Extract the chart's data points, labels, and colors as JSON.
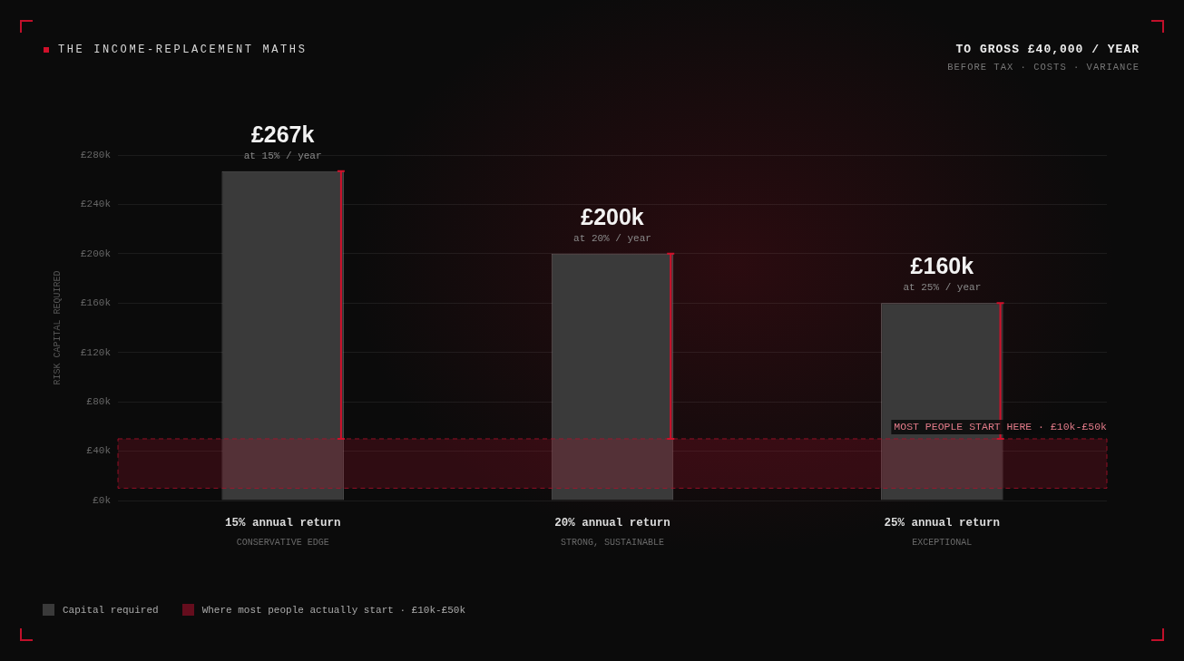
{
  "chart_data": {
    "type": "bar",
    "title": "THE INCOME-REPLACEMENT MATHS",
    "subtitle": "TO GROSS £40,000 / YEAR",
    "ylabel": "RISK CAPITAL REQUIRED",
    "categories": [
      "15% annual return",
      "20% annual return",
      "25% annual return"
    ],
    "series": [
      {
        "name": "Capital required",
        "color": "#3a3a3a",
        "values": [
          267,
          200,
          160
        ],
        "errors": [
          [
            50,
            267
          ],
          [
            50,
            200
          ],
          [
            50,
            160
          ]
        ],
        "value_labels": [
          "£267k",
          "£200k",
          "£160k"
        ]
      }
    ],
    "ylim": [
      0,
      280
    ],
    "yticks": [
      {
        "value": 0,
        "label": "£0k"
      },
      {
        "value": 40,
        "label": "£40k"
      },
      {
        "value": 80,
        "label": "£80k"
      },
      {
        "value": 120,
        "label": "£120k"
      },
      {
        "value": 160,
        "label": "£160k"
      },
      {
        "value": 200,
        "label": "£200k"
      },
      {
        "value": 240,
        "label": "£240k"
      },
      {
        "value": 280,
        "label": "£280k"
      }
    ],
    "bands": [
      {
        "axis": "y",
        "from": 10,
        "to": 50,
        "label": "Where most people actually start · £10k-£50k",
        "color": "#b0102c"
      }
    ],
    "annotations": [
      "BEFORE TAX · COSTS · VARIANCE",
      {
        "text": "at 15% / year",
        "x": "15% annual return",
        "y": 267
      },
      {
        "text": "at 20% / year",
        "x": "20% annual return",
        "y": 200
      },
      {
        "text": "at 25% / year",
        "x": "25% annual return",
        "y": 160
      },
      "CONSERVATIVE EDGE",
      "STRONG, SUSTAINABLE",
      "EXCEPTIONAL",
      {
        "text": "MOST PEOPLE START HERE · £10k-£50k",
        "y": 50
      }
    ],
    "grid": "y",
    "legend": "bottom left"
  }
}
